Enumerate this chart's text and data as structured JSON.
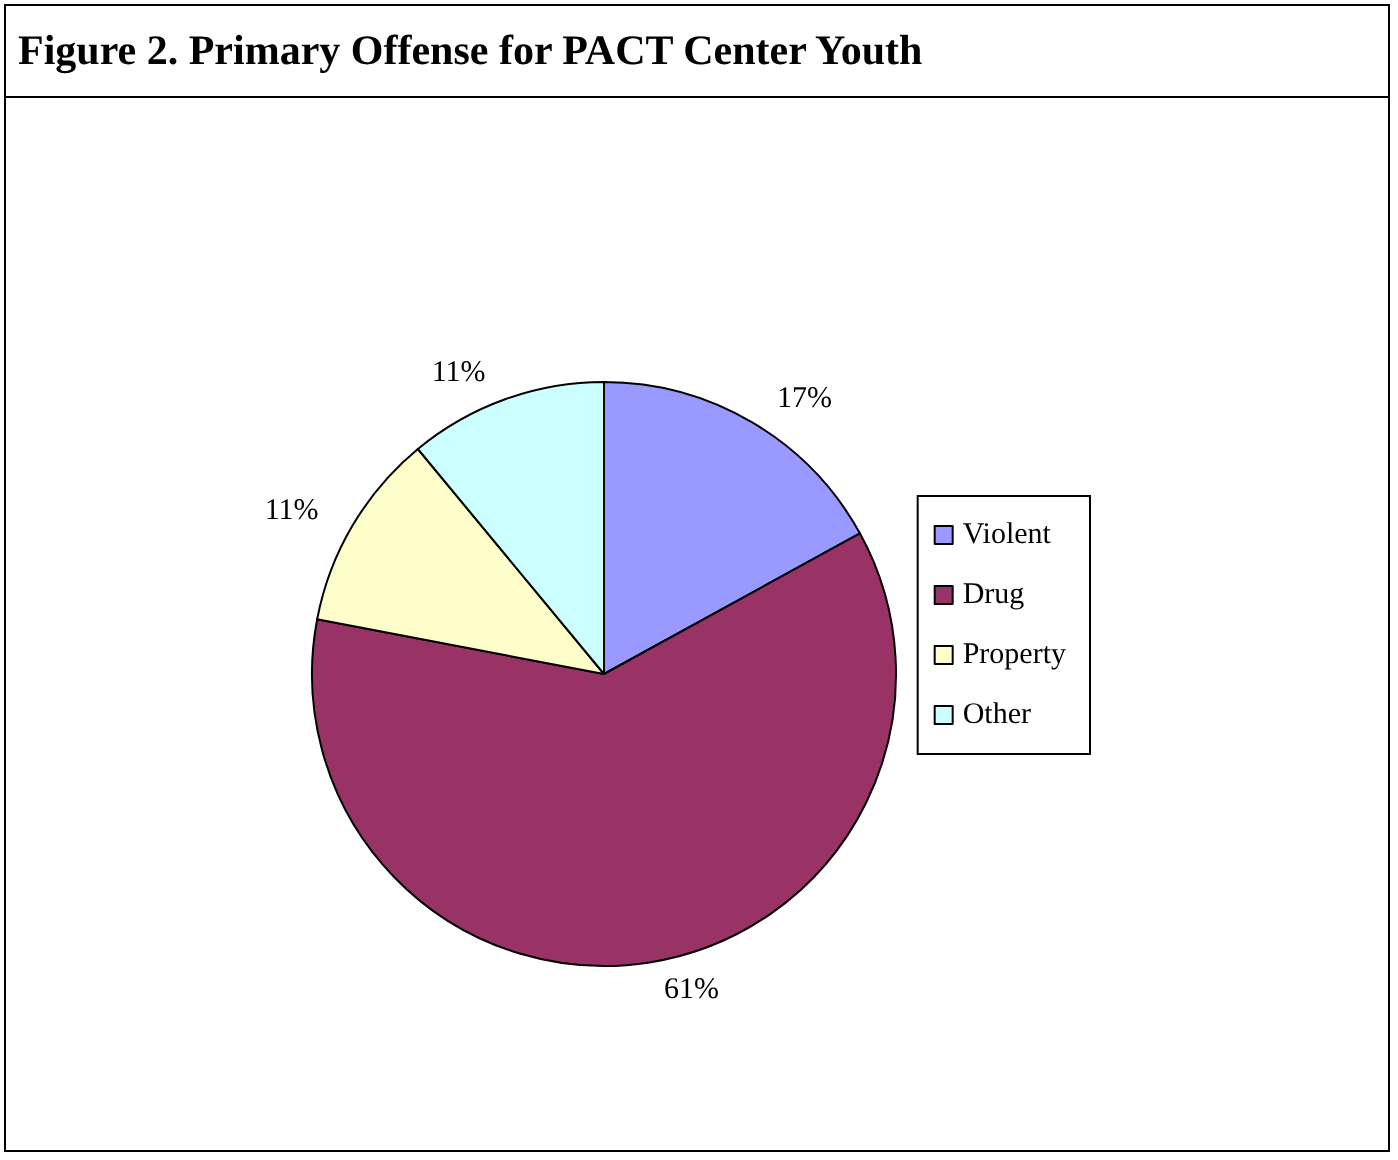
{
  "chart_data": {
    "type": "pie",
    "title": "Figure 2. Primary Offense for PACT Center Youth",
    "categories": [
      "Violent",
      "Drug",
      "Property",
      "Other"
    ],
    "values": [
      17,
      61,
      11,
      11
    ],
    "value_labels": [
      "17%",
      "61%",
      "11%",
      "11%"
    ],
    "colors": [
      "#9999ff",
      "#993366",
      "#ffffcc",
      "#ccffff"
    ],
    "legend": "right"
  }
}
